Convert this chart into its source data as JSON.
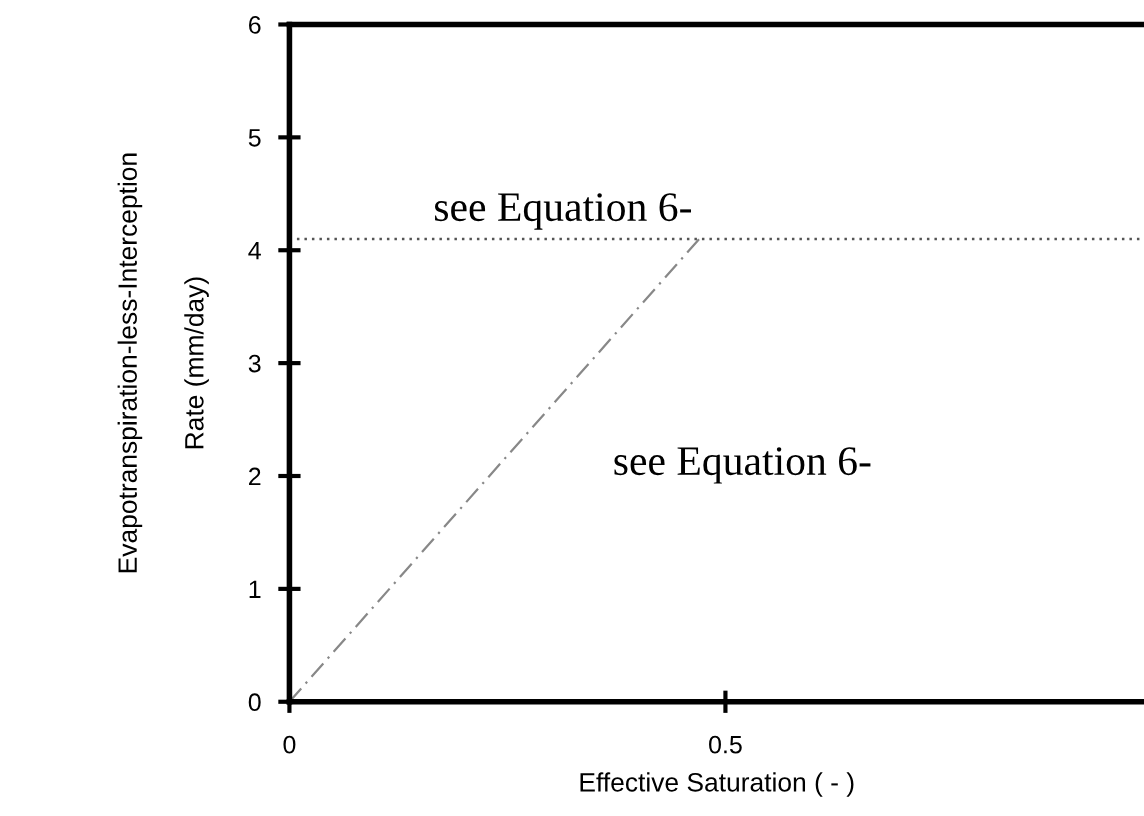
{
  "chart_data": {
    "type": "line",
    "xlabel": "Effective Saturation ( - )",
    "ylabel": "Evapotranspiration-less-Interception\nRate (mm/day)",
    "x": [
      0,
      0.47
    ],
    "series": [
      {
        "color": "#888888",
        "values": [
          0,
          4.1
        ],
        "line_style": "dashed"
      }
    ],
    "ref_lines": [
      {
        "axis": "y",
        "value": 4.1,
        "color": "#555555",
        "line_style": "dotted"
      }
    ],
    "annotations": [
      "see Equation 6-",
      "see Equation 6-"
    ],
    "xlim": [
      0,
      0.98
    ],
    "ylim": [
      0,
      6
    ],
    "xticks": [
      0,
      0.5
    ],
    "yticks": [
      0,
      1,
      2,
      3,
      4,
      5,
      6
    ],
    "grid": false,
    "legend": false,
    "marker": "none"
  }
}
